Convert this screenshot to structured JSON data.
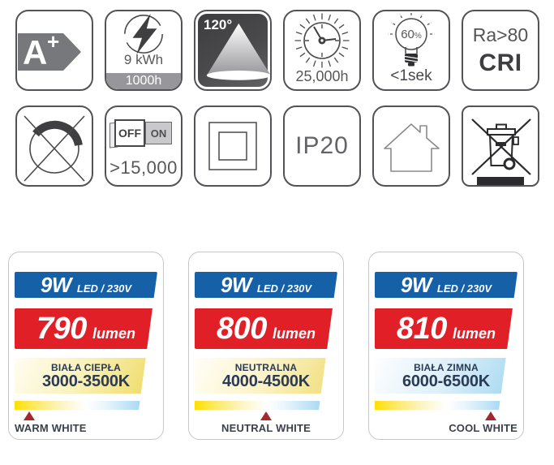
{
  "icons": {
    "energy_class": {
      "icon": "energy-arrow-icon",
      "letter": "A",
      "plus": "+"
    },
    "energy_consumption": {
      "icon": "lightning-bolt-icon",
      "value": "9 kWh",
      "per": "1000h"
    },
    "beam_angle": {
      "icon": "light-cone-icon",
      "value": "120°"
    },
    "lifetime": {
      "icon": "clock-icon",
      "value": "25,000h"
    },
    "instant_on": {
      "icon": "bulb-icon",
      "percent": "60",
      "percent_sign": "%",
      "time": "<1sek"
    },
    "cri": {
      "line1": "Ra>80",
      "line2": "CRI"
    },
    "not_dimmable": {
      "icon": "crossed-dimmer-icon"
    },
    "switch_cycles": {
      "icon": "off-on-switch-icon",
      "off": "OFF",
      "on": "ON",
      "value": ">15,000"
    },
    "panel_shape": {
      "icon": "square-panel-icon"
    },
    "ip_rating": {
      "value": "IP20"
    },
    "indoor_use": {
      "icon": "house-icon"
    },
    "weee": {
      "icon": "crossed-wheelie-bin-icon"
    }
  },
  "cards": [
    {
      "power": "9W",
      "spec": "LED / 230V",
      "lumens": "790",
      "lumen_unit": "lumen",
      "temp_name": "BIAŁA CIEPŁA",
      "temp_range": "3000-3500K",
      "label": "WARM WHITE",
      "marker_percent": 10
    },
    {
      "power": "9W",
      "spec": "LED / 230V",
      "lumens": "800",
      "lumen_unit": "lumen",
      "temp_name": "NEUTRALNA",
      "temp_range": "4000-4500K",
      "label": "NEUTRAL WHITE",
      "marker_percent": 50
    },
    {
      "power": "9W",
      "spec": "LED / 230V",
      "lumens": "810",
      "lumen_unit": "lumen",
      "temp_name": "BIAŁA ZIMNA",
      "temp_range": "6000-6500K",
      "label": "COOL WHITE",
      "marker_percent": 81
    }
  ],
  "colors": {
    "bar_blue": "#1660a8",
    "bar_red": "#e11f26",
    "marker_red": "#a5282e",
    "temp_text_navy": "#2b3a55",
    "label_text": "#3a414b",
    "icon_gray": "#58585a",
    "strip_warm_yellow": "#ffdf00",
    "strip_cool_blue": "#85cbf0"
  }
}
